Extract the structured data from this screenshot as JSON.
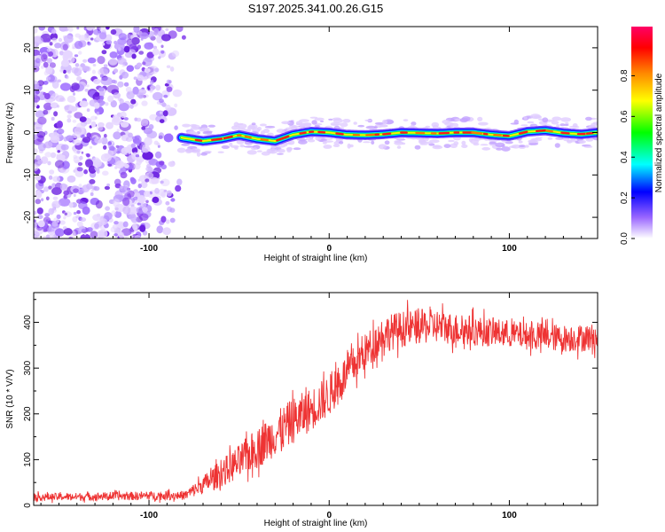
{
  "title": "S197.2025.341.00.26.G15",
  "chart_data": [
    {
      "type": "heatmap",
      "title": "S197.2025.341.00.26.G15",
      "xlabel": "Height of straight line (km)",
      "ylabel": "Frequency (Hz)",
      "xlim": [
        -164,
        149
      ],
      "ylim": [
        -25,
        25
      ],
      "x_ticks": [
        -100,
        0,
        100
      ],
      "y_ticks": [
        20,
        10,
        0,
        -10,
        -20
      ],
      "noise_region_x": [
        -164,
        -80
      ],
      "signal_start_x": -82,
      "ridge": {
        "x": [
          -82,
          -70,
          -60,
          -50,
          -40,
          -30,
          -20,
          -10,
          0,
          10,
          20,
          30,
          40,
          50,
          60,
          70,
          80,
          90,
          100,
          110,
          120,
          130,
          140,
          149
        ],
        "frequency": [
          -1.2,
          -2.0,
          -1.5,
          -0.6,
          -1.5,
          -2.0,
          -0.5,
          0.2,
          0.0,
          -0.5,
          -0.6,
          -0.4,
          0.0,
          -0.1,
          -0.2,
          0.0,
          0.0,
          -0.5,
          -0.8,
          0.2,
          0.5,
          -0.1,
          -0.4,
          0.0
        ]
      },
      "colorbar": {
        "label": "Normalized spectral amplitude",
        "range": [
          0.0,
          1.0
        ],
        "ticks": [
          "0.0",
          "0.2",
          "0.4",
          "0.6",
          "0.8"
        ],
        "colors": [
          "#ffffff",
          "#9966ff",
          "#0000ff",
          "#00ffff",
          "#00ff00",
          "#ffff00",
          "#ff8800",
          "#ff0000",
          "#ff0066"
        ]
      }
    },
    {
      "type": "line",
      "xlabel": "Height of straight line (km)",
      "ylabel": "SNR (10 * V/V)",
      "xlim": [
        -164,
        149
      ],
      "ylim": [
        0,
        465
      ],
      "x_ticks": [
        -100,
        0,
        100
      ],
      "y_ticks": [
        0,
        100,
        200,
        300,
        400
      ],
      "line_color": "#ee3333",
      "trend": {
        "x": [
          -164,
          -120,
          -80,
          -70,
          -60,
          -50,
          -40,
          -30,
          -20,
          -10,
          0,
          10,
          20,
          25,
          30,
          40,
          50,
          60,
          70,
          80,
          90,
          100,
          110,
          120,
          130,
          140,
          149
        ],
        "y": [
          18,
          20,
          22,
          45,
          70,
          95,
          125,
          155,
          185,
          210,
          240,
          290,
          335,
          355,
          375,
          385,
          390,
          392,
          385,
          382,
          378,
          375,
          370,
          368,
          365,
          366,
          368
        ]
      },
      "noise_amplitude": {
        "x": [
          -164,
          -80,
          -60,
          -40,
          -20,
          0,
          20,
          40,
          100,
          149
        ],
        "y": [
          8,
          10,
          30,
          45,
          50,
          45,
          40,
          40,
          30,
          30
        ]
      }
    }
  ]
}
